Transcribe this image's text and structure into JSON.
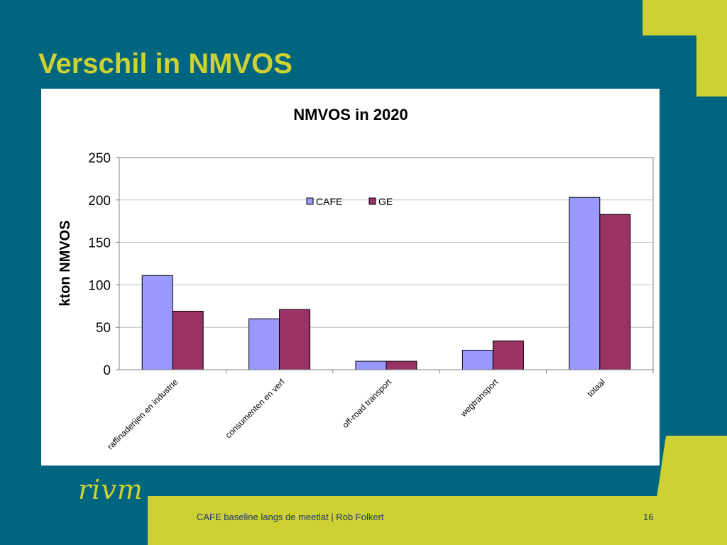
{
  "slide": {
    "title": "Verschil in NMVOS",
    "footer_text": "CAFE baseline langs de meetlat | Rob Folkert",
    "page_number": "16",
    "logo_text": "rivm"
  },
  "colors": {
    "background": "#006680",
    "accent": "#cdd131",
    "cafe": "#9999ff",
    "ge": "#993366",
    "title_text": "#cdd131",
    "footer_text": "#1f3a6a"
  },
  "chart_data": {
    "type": "bar",
    "title": "NMVOS in 2020",
    "xlabel": "",
    "ylabel": "kton NMVOS",
    "categories": [
      "raffinaderijen en industrie",
      "consumenten en verf",
      "off-road transport",
      "wegtransport",
      "totaal"
    ],
    "series": [
      {
        "name": "CAFE",
        "color": "#9999ff",
        "values": [
          111,
          60,
          10,
          23,
          203
        ]
      },
      {
        "name": "GE",
        "color": "#993366",
        "values": [
          69,
          71,
          10,
          34,
          183
        ]
      }
    ],
    "ylim": [
      0,
      250
    ],
    "yticks": [
      0,
      50,
      100,
      150,
      200,
      250
    ],
    "grid": true,
    "legend_position": "top-center"
  }
}
